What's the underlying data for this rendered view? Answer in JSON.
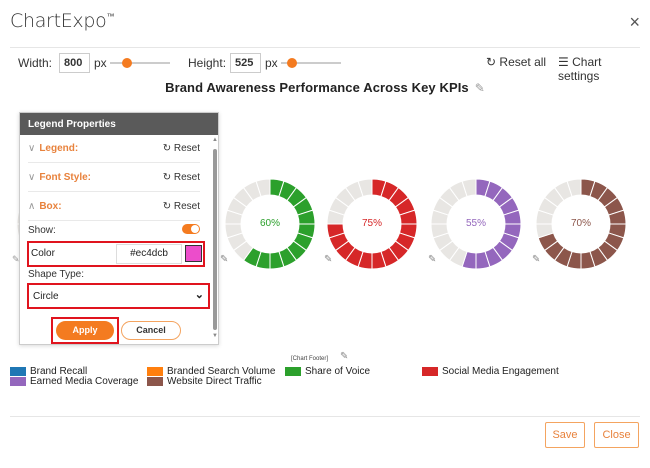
{
  "app": {
    "title": "ChartExpo",
    "trademark": "™",
    "close_icon": "×"
  },
  "toolbar": {
    "width_label": "Width:",
    "width_value": "800",
    "width_unit": "px",
    "height_label": "Height:",
    "height_value": "525",
    "height_unit": "px",
    "reset_all_label": "Reset all",
    "reset_icon": "↻",
    "chart_settings_label": "Chart settings",
    "settings_icon": "☰"
  },
  "chart": {
    "title": "Brand Awareness Performance Across Key KPIs",
    "edit_icon": "✎",
    "footer_tag": "[Chart Footer]"
  },
  "chart_data": {
    "type": "pie",
    "subtype": "segmented-donut",
    "title": "Brand Awareness Performance Across Key KPIs",
    "segments_per_donut": 20,
    "series": [
      {
        "name": "Share of Voice",
        "value": 60,
        "color": "#2ca02c",
        "label": "60%"
      },
      {
        "name": "Social Media Engagement",
        "value": 75,
        "color": "#d62728",
        "label": "75%"
      },
      {
        "name": "Earned Media Coverage",
        "value": 55,
        "color": "#9467bd",
        "label": "55%"
      },
      {
        "name": "Website Direct Traffic",
        "value": 70,
        "color": "#8c564b",
        "label": "70%"
      }
    ],
    "track_color": "#e8e6e3",
    "legend": [
      {
        "name": "Brand Recall",
        "color": "#1f77b4"
      },
      {
        "name": "Earned Media Coverage",
        "color": "#9467bd"
      },
      {
        "name": "Branded Search Volume",
        "color": "#ff7f0e"
      },
      {
        "name": "Website Direct Traffic",
        "color": "#8c564b"
      },
      {
        "name": "Share of Voice",
        "color": "#2ca02c"
      },
      {
        "name": "Social Media Engagement",
        "color": "#d62728"
      }
    ],
    "legend_position": "bottom"
  },
  "panel": {
    "title": "Legend Properties",
    "sections": [
      {
        "label": "Legend:",
        "chevron": "∨",
        "reset": "Reset"
      },
      {
        "label": "Font Style:",
        "chevron": "∨",
        "reset": "Reset"
      },
      {
        "label": "Box:",
        "chevron": "∧",
        "reset": "Reset"
      }
    ],
    "reset_icon": "↻",
    "show_label": "Show:",
    "show_value": true,
    "color_label": "Color",
    "color_value": "#ec4dcb",
    "shape_label": "Shape Type:",
    "shape_value": "Circle",
    "select_chevron": "⌄",
    "apply_label": "Apply",
    "cancel_label": "Cancel"
  },
  "footer": {
    "save_label": "Save",
    "close_label": "Close"
  },
  "colors": {
    "accent": "#f47b20",
    "highlight": "#e0141e",
    "panel_header": "#5a5a5a"
  }
}
